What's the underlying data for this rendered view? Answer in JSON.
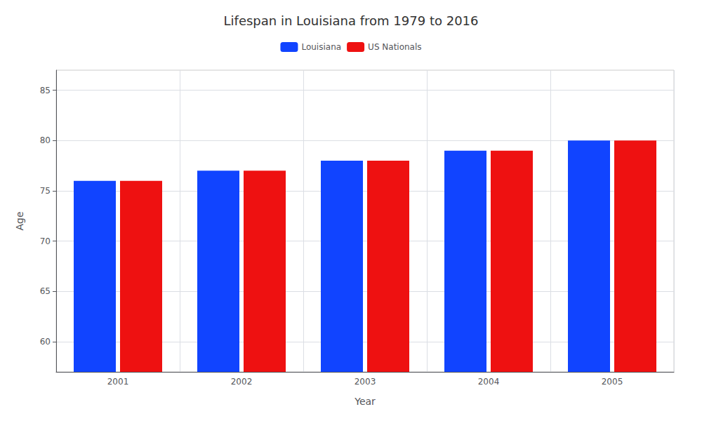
{
  "chart_data": {
    "type": "bar",
    "title": "Lifespan in Louisiana from 1979 to 2016",
    "x_label": "Year",
    "y_label": "Age",
    "categories": [
      "2001",
      "2002",
      "2003",
      "2004",
      "2005"
    ],
    "series": [
      {
        "name": "Louisiana",
        "color": "#1144ff",
        "values": [
          76,
          77,
          78,
          79,
          80
        ]
      },
      {
        "name": "US Nationals",
        "color": "#ee1111",
        "values": [
          76,
          77,
          78,
          79,
          80
        ]
      }
    ],
    "ylim": [
      57,
      87
    ],
    "yticks": [
      60,
      65,
      70,
      75,
      80,
      85
    ],
    "grid": true,
    "legend": "top"
  }
}
